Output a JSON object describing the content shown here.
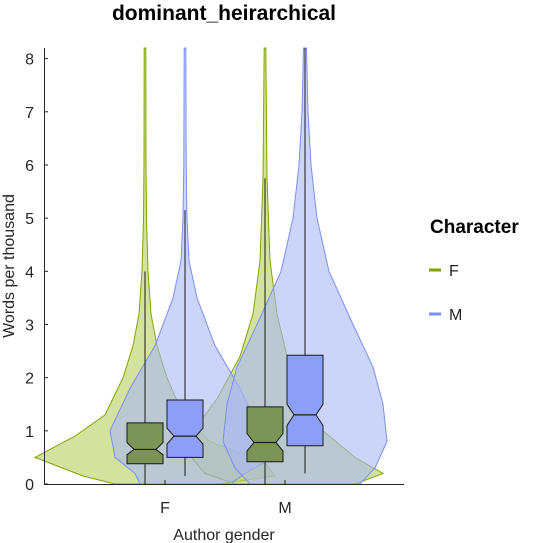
{
  "chart_data": {
    "type": "violin",
    "title": "dominant_heirarchical",
    "xlabel": "Author gender",
    "ylabel": "Words per thousand",
    "categories": [
      "F",
      "M"
    ],
    "ylim": [
      0,
      8.2
    ],
    "yticks": [
      0,
      1,
      2,
      3,
      4,
      5,
      6,
      7,
      8
    ],
    "legend": {
      "title": "Character",
      "position": "right",
      "entries": [
        {
          "label": "F",
          "color": "#7fa600"
        },
        {
          "label": "M",
          "color": "#7b8ef5"
        }
      ]
    },
    "series": [
      {
        "name": "F",
        "color": "#7fa600",
        "fill": "#b5cf5e",
        "box_fill": "#7a9356",
        "groups": [
          {
            "category": "F",
            "q1": 0.38,
            "median": 0.65,
            "q3": 1.15,
            "notch_lo": 0.55,
            "notch_hi": 0.78,
            "whisker_low": 0.0,
            "whisker_high": 4.0,
            "max": 8.2
          },
          {
            "category": "M",
            "q1": 0.42,
            "median": 0.78,
            "q3": 1.45,
            "notch_lo": 0.62,
            "notch_hi": 0.95,
            "whisker_low": 0.0,
            "whisker_high": 5.75,
            "max": 8.2
          }
        ]
      },
      {
        "name": "M",
        "color": "#7b8ef5",
        "fill": "#aab8f5",
        "box_fill": "#8d9ef7",
        "groups": [
          {
            "category": "F",
            "q1": 0.5,
            "median": 0.9,
            "q3": 1.58,
            "notch_lo": 0.75,
            "notch_hi": 1.05,
            "whisker_low": 0.15,
            "whisker_high": 5.15,
            "max": 8.2
          },
          {
            "category": "M",
            "q1": 0.72,
            "median": 1.3,
            "q3": 2.42,
            "notch_lo": 1.1,
            "notch_hi": 1.5,
            "whisker_low": 0.2,
            "whisker_high": 8.2,
            "max": 8.2
          }
        ]
      }
    ]
  }
}
